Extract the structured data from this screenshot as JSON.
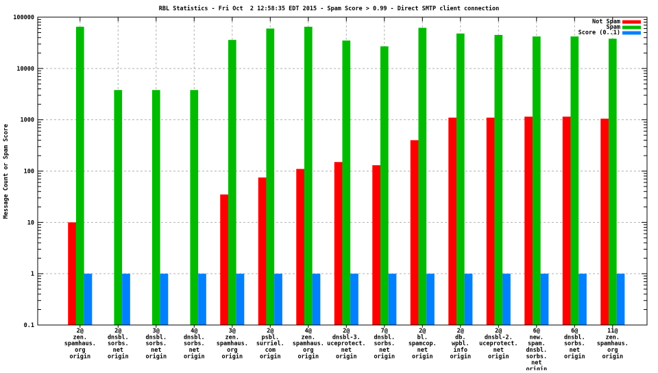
{
  "chart_data": {
    "type": "bar",
    "title": "RBL Statistics - Fri Oct  2 12:58:35 EDT 2015 - Spam Score > 0.99 - Direct SMTP client connection",
    "ylabel": "Message Count or Spam Score",
    "xlabel": "",
    "y_scale": "log",
    "ylim": [
      0.1,
      100000
    ],
    "y_tick_labels": [
      "100000",
      "10000",
      "1000",
      "100",
      "10",
      "1",
      "0.1"
    ],
    "grid": true,
    "legend_position": "top-right-inside",
    "background_color": "#ffffff",
    "grid_color": "#b0b0b0",
    "border_color": "#000000",
    "categories": [
      [
        "2@",
        "zen.",
        "spamhaus.",
        "org",
        "origin"
      ],
      [
        "2@",
        "dnsbl.",
        "sorbs.",
        "net",
        "origin"
      ],
      [
        "3@",
        "dnsbl.",
        "sorbs.",
        "net",
        "origin"
      ],
      [
        "4@",
        "dnsbl.",
        "sorbs.",
        "net",
        "origin"
      ],
      [
        "3@",
        "zen.",
        "spamhaus.",
        "org",
        "origin"
      ],
      [
        "2@",
        "psbl.",
        "surriel.",
        "com",
        "origin"
      ],
      [
        "4@",
        "zen.",
        "spamhaus.",
        "org",
        "origin"
      ],
      [
        "2@",
        "dnsbl-3.",
        "uceprotect.",
        "net",
        "origin"
      ],
      [
        "7@",
        "dnsbl.",
        "sorbs.",
        "net",
        "origin"
      ],
      [
        "2@",
        "bl.",
        "spamcop.",
        "net",
        "origin"
      ],
      [
        "2@",
        "db.",
        "wpbl.",
        "info",
        "origin"
      ],
      [
        "2@",
        "dnsbl-2.",
        "uceprotect.",
        "net",
        "origin"
      ],
      [
        "6@",
        "new.",
        "spam.",
        "dnsbl.",
        "sorbs.",
        "net",
        "origin"
      ],
      [
        "6@",
        "dnsbl.",
        "sorbs.",
        "net",
        "origin"
      ],
      [
        "11@",
        "zen.",
        "spamhaus.",
        "org",
        "origin"
      ]
    ],
    "series": [
      {
        "name": "Not Spam",
        "color": "#ff0000",
        "values": [
          10,
          0,
          0,
          0,
          35,
          75,
          110,
          150,
          130,
          400,
          1100,
          1100,
          1150,
          1150,
          1050
        ]
      },
      {
        "name": "Spam",
        "color": "#00bb00",
        "values": [
          65000,
          3800,
          3800,
          3800,
          36000,
          60000,
          65000,
          35000,
          27000,
          62000,
          48000,
          45000,
          42000,
          42000,
          38000
        ]
      },
      {
        "name": "Score (0..1)",
        "color": "#0080ff",
        "values": [
          1,
          1,
          1,
          1,
          1,
          1,
          1,
          1,
          1,
          1,
          1,
          1,
          1,
          1,
          1
        ]
      }
    ]
  }
}
